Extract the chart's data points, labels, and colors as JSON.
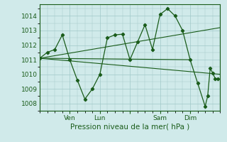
{
  "xlabel": "Pression niveau de la mer( hPa )",
  "background_color": "#d0eaea",
  "grid_color": "#a0c8c8",
  "line_color": "#1a5c1a",
  "yticks": [
    1008,
    1009,
    1010,
    1011,
    1012,
    1013,
    1014
  ],
  "ylim": [
    1007.5,
    1014.8
  ],
  "xlim": [
    0,
    72
  ],
  "xtick_positions": [
    12,
    24,
    36,
    48,
    60
  ],
  "xtick_labels": [
    "Ven",
    "Lun",
    "",
    "Sam",
    "Dim"
  ],
  "series": [
    [
      0,
      1011.1
    ],
    [
      3,
      1011.5
    ],
    [
      6,
      1011.7
    ],
    [
      9,
      1012.7
    ],
    [
      12,
      1011.0
    ],
    [
      15,
      1009.6
    ],
    [
      18,
      1008.3
    ],
    [
      21,
      1009.0
    ],
    [
      24,
      1010.0
    ],
    [
      27,
      1012.5
    ],
    [
      30,
      1012.7
    ],
    [
      33,
      1012.75
    ],
    [
      36,
      1011.0
    ],
    [
      39,
      1012.2
    ],
    [
      42,
      1013.4
    ],
    [
      45,
      1011.7
    ],
    [
      48,
      1014.1
    ],
    [
      51,
      1014.5
    ],
    [
      54,
      1014.0
    ],
    [
      57,
      1013.0
    ],
    [
      60,
      1011.0
    ],
    [
      63,
      1009.4
    ],
    [
      66,
      1007.8
    ],
    [
      67,
      1008.5
    ],
    [
      68,
      1010.4
    ],
    [
      69,
      1010.1
    ],
    [
      70,
      1009.7
    ],
    [
      71,
      1009.7
    ]
  ],
  "trend_series": [
    [
      0,
      1011.1
    ],
    [
      72,
      1013.2
    ]
  ],
  "flat_series": [
    [
      0,
      1011.1
    ],
    [
      60,
      1011.0
    ]
  ],
  "descend_series": [
    [
      0,
      1011.1
    ],
    [
      72,
      1010.0
    ]
  ]
}
